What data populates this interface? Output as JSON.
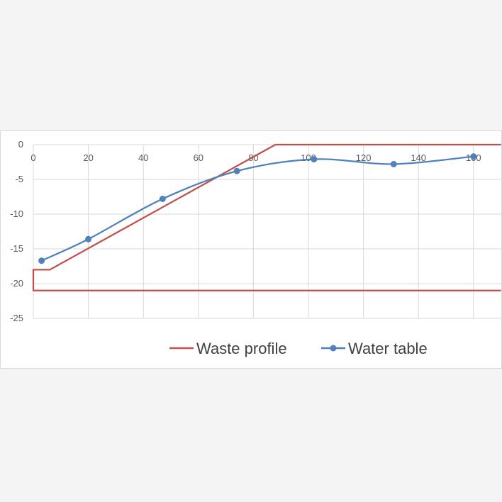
{
  "chart_data": {
    "type": "line",
    "title": "",
    "xlabel": "",
    "ylabel": "",
    "xlim": [
      0,
      170
    ],
    "ylim": [
      -25,
      0
    ],
    "x_ticks": [
      0,
      20,
      40,
      60,
      80,
      100,
      120,
      140,
      160
    ],
    "y_ticks": [
      0,
      -5,
      -10,
      -15,
      -20,
      -25
    ],
    "grid": "vertical and horizontal",
    "legend_position": "bottom",
    "series": [
      {
        "name": "Waste profile",
        "color": "#c0504d",
        "markers": false,
        "smooth": false,
        "points": [
          [
            170,
            -21
          ],
          [
            0,
            -21
          ],
          [
            0,
            -18
          ],
          [
            6,
            -18
          ],
          [
            88,
            0
          ],
          [
            170,
            0
          ]
        ]
      },
      {
        "name": "Water table",
        "color": "#4f81bd",
        "markers": true,
        "smooth": true,
        "points": [
          [
            3,
            -16.7
          ],
          [
            20,
            -13.6
          ],
          [
            47,
            -7.8
          ],
          [
            74,
            -3.8
          ],
          [
            102,
            -2.1
          ],
          [
            131,
            -2.8
          ],
          [
            160,
            -1.7
          ]
        ]
      }
    ]
  }
}
